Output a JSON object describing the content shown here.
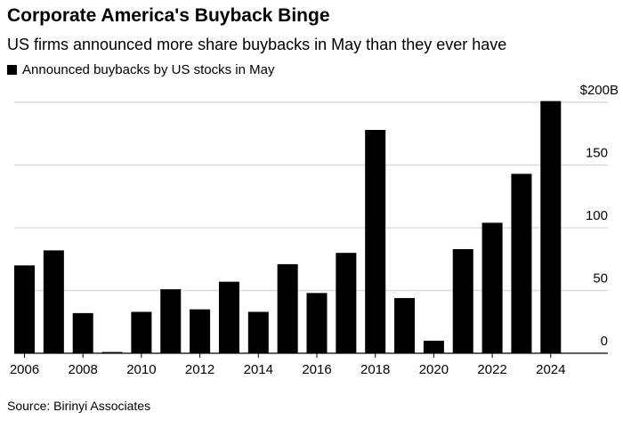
{
  "chart_data": {
    "type": "bar",
    "title": "Corporate America's Buyback Binge",
    "subtitle": "US firms announced more share buybacks in May than they ever have",
    "legend": "Announced buybacks by US stocks in May",
    "legend_placement": "top-left",
    "source": "Source: Birinyi Associates",
    "categories": [
      "2006",
      "2007",
      "2008",
      "2009",
      "2010",
      "2011",
      "2012",
      "2013",
      "2014",
      "2015",
      "2016",
      "2017",
      "2018",
      "2019",
      "2020",
      "2021",
      "2022",
      "2023",
      "2024"
    ],
    "values": [
      70,
      82,
      32,
      1,
      33,
      51,
      35,
      57,
      33,
      71,
      48,
      80,
      178,
      44,
      10,
      83,
      104,
      143,
      201
    ],
    "x_tick_labels": [
      "2006",
      "2008",
      "2010",
      "2012",
      "2014",
      "2016",
      "2018",
      "2020",
      "2022",
      "2024"
    ],
    "y_ticks": [
      0,
      50,
      100,
      150,
      200
    ],
    "y_tick_labels": [
      "0",
      "50",
      "100",
      "150",
      "$200B"
    ],
    "ylim": [
      0,
      200
    ],
    "grid": true,
    "bar_color": "#000000",
    "grid_color": "#dddddd"
  }
}
